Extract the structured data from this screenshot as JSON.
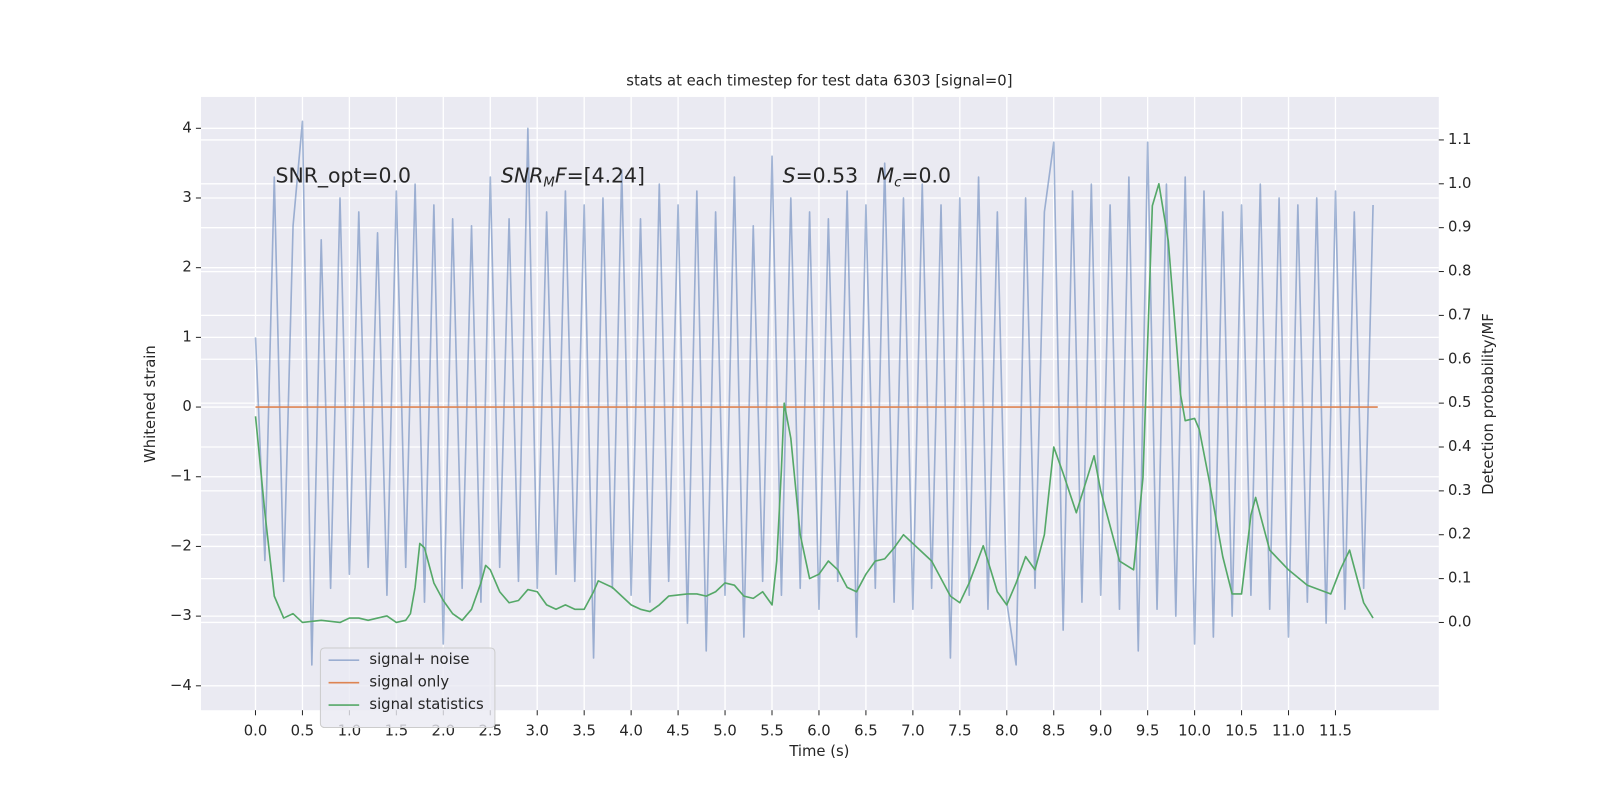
{
  "chart_data": {
    "type": "line",
    "title": "stats at each timestep for test data 6303 [signal=0]",
    "x_label": "Time (s)",
    "y_label": "Whitened strain",
    "y2_label": "Detection probability/MF",
    "xlim": [
      -0.58,
      12.6
    ],
    "ylim": [
      -4.35,
      4.45
    ],
    "y2lim": [
      -0.2,
      1.198
    ],
    "xticks": [
      {
        "value": 0,
        "label": "0.0"
      },
      0.5,
      {
        "value": 1,
        "label": "1.0"
      },
      1.5,
      {
        "value": 2,
        "label": "2.0"
      },
      2.5,
      {
        "value": 3,
        "label": "3.0"
      },
      3.5,
      {
        "value": 4,
        "label": "4.0"
      },
      4.5,
      {
        "value": 5,
        "label": "5.0"
      },
      5.5,
      {
        "value": 6,
        "label": "6.0"
      },
      6.5,
      {
        "value": 7,
        "label": "7.0"
      },
      7.5,
      {
        "value": 8,
        "label": "8.0"
      },
      8.5,
      {
        "value": 9,
        "label": "9.0"
      },
      9.5,
      {
        "value": 10,
        "label": "10.0"
      },
      10.5,
      {
        "value": 11,
        "label": "11.0"
      },
      11.5
    ],
    "yticks": [
      {
        "value": -4,
        "label": "−4"
      },
      {
        "value": -3,
        "label": "−3"
      },
      {
        "value": -2,
        "label": "−2"
      },
      {
        "value": -1,
        "label": "−1"
      },
      0,
      1,
      2,
      3,
      4
    ],
    "y2ticks": [
      {
        "value": 0,
        "label": "0.0"
      },
      0.1,
      0.2,
      0.3,
      0.4,
      0.5,
      0.6,
      0.7,
      0.8,
      0.9,
      {
        "value": 1,
        "label": "1.0"
      },
      1.1
    ],
    "grid": true,
    "legend": "lower left",
    "annotations": [
      {
        "segments": [
          {
            "text": "SNR_opt=0.0"
          }
        ]
      },
      {
        "segments": [
          {
            "text": "SNR",
            "italic": true
          },
          {
            "text": "M",
            "italic": true,
            "sub": true
          },
          {
            "text": "F",
            "italic": true
          },
          {
            "text": "=[4.24]"
          }
        ]
      },
      {
        "segments": [
          {
            "text": "S",
            "italic": true
          },
          {
            "text": "=0.53"
          }
        ]
      },
      {
        "segments": [
          {
            "text": "M",
            "italic": true
          },
          {
            "text": "c",
            "italic": true,
            "sub": true
          },
          {
            "text": "=0.0"
          }
        ]
      }
    ],
    "series": [
      {
        "name": "signal+ noise",
        "color": "#4c72b0",
        "opacity": 0.5,
        "x": [
          0,
          0.1,
          0.2,
          0.3,
          0.4,
          0.5,
          0.6,
          0.7,
          0.8,
          0.9,
          1,
          1.1,
          1.2,
          1.3,
          1.4,
          1.5,
          1.6,
          1.7,
          1.8,
          1.9,
          2,
          2.1,
          2.2,
          2.3,
          2.4,
          2.5,
          2.6,
          2.7,
          2.8,
          2.9,
          3,
          3.1,
          3.2,
          3.3,
          3.4,
          3.5,
          3.6,
          3.7,
          3.8,
          3.9,
          4,
          4.1,
          4.2,
          4.3,
          4.4,
          4.5,
          4.6,
          4.7,
          4.8,
          4.9,
          5,
          5.1,
          5.2,
          5.3,
          5.4,
          5.5,
          5.6,
          5.7,
          5.8,
          5.9,
          6,
          6.1,
          6.2,
          6.3,
          6.4,
          6.5,
          6.6,
          6.7,
          6.8,
          6.9,
          7,
          7.1,
          7.2,
          7.3,
          7.4,
          7.5,
          7.6,
          7.7,
          7.8,
          7.9,
          8,
          8.1,
          8.2,
          8.3,
          8.4,
          8.5,
          8.6,
          8.7,
          8.8,
          8.9,
          9,
          9.1,
          9.2,
          9.3,
          9.4,
          9.5,
          9.6,
          9.7,
          9.8,
          9.9,
          10,
          10.1,
          10.2,
          10.3,
          10.4,
          10.5,
          10.6,
          10.7,
          10.8,
          10.9,
          11,
          11.1,
          11.2,
          11.3,
          11.4,
          11.5,
          11.6,
          11.7,
          11.8,
          11.9
        ],
        "values": [
          1.0,
          -2.2,
          3.3,
          -2.5,
          2.6,
          4.1,
          -3.7,
          2.4,
          -2.6,
          3.0,
          -2.4,
          2.8,
          -2.3,
          2.5,
          -2.7,
          3.1,
          -2.3,
          3.2,
          -2.8,
          2.9,
          -3.4,
          2.7,
          -2.6,
          2.6,
          -2.8,
          3.3,
          -2.3,
          2.7,
          -2.5,
          4.0,
          -2.6,
          2.8,
          -2.4,
          3.1,
          -2.5,
          2.9,
          -3.6,
          3.0,
          -2.6,
          3.4,
          -2.7,
          2.7,
          -2.8,
          3.2,
          -2.5,
          2.9,
          -3.1,
          3.1,
          -3.5,
          2.8,
          -2.7,
          3.3,
          -3.3,
          2.6,
          -2.5,
          3.6,
          -2.7,
          3.0,
          -2.6,
          2.8,
          -2.9,
          2.7,
          -2.5,
          3.1,
          -3.3,
          2.9,
          -2.6,
          3.5,
          -2.8,
          3.0,
          -2.9,
          3.2,
          -2.6,
          2.9,
          -3.6,
          3.0,
          -2.7,
          3.3,
          -2.9,
          2.8,
          -2.8,
          -3.7,
          3.0,
          -2.6,
          2.8,
          3.8,
          -3.2,
          3.1,
          -2.8,
          3.2,
          -2.7,
          2.9,
          -2.9,
          3.3,
          -3.5,
          3.8,
          -2.9,
          3.2,
          -3.0,
          3.3,
          -3.4,
          3.1,
          -3.3,
          2.8,
          -3.0,
          2.9,
          -2.7,
          3.2,
          -2.9,
          3.0,
          -3.3,
          2.9,
          -2.8,
          3.0,
          -3.1,
          3.1,
          -2.9,
          2.8,
          -2.6,
          2.9
        ]
      },
      {
        "name": "signal only",
        "color": "#dd8452",
        "x": [
          0,
          11.95
        ],
        "values": [
          0,
          0
        ]
      },
      {
        "name": "signal statistics",
        "color": "#55a868",
        "axis": "y2",
        "x": [
          0,
          0.1,
          0.2,
          0.3,
          0.4,
          0.5,
          0.7,
          0.9,
          1,
          1.1,
          1.2,
          1.3,
          1.4,
          1.5,
          1.6,
          1.65,
          1.7,
          1.75,
          1.8,
          1.9,
          2,
          2.1,
          2.2,
          2.3,
          2.4,
          2.45,
          2.5,
          2.6,
          2.7,
          2.8,
          2.9,
          3,
          3.1,
          3.2,
          3.3,
          3.4,
          3.5,
          3.6,
          3.65,
          3.8,
          3.9,
          4,
          4.1,
          4.2,
          4.3,
          4.4,
          4.6,
          4.7,
          4.8,
          4.9,
          5,
          5.1,
          5.2,
          5.3,
          5.4,
          5.5,
          5.55,
          5.6,
          5.63,
          5.7,
          5.8,
          5.9,
          6,
          6.1,
          6.2,
          6.3,
          6.4,
          6.5,
          6.6,
          6.7,
          6.8,
          6.9,
          7,
          7.2,
          7.4,
          7.5,
          7.6,
          7.75,
          7.9,
          8,
          8.1,
          8.2,
          8.3,
          8.4,
          8.5,
          8.6,
          8.74,
          8.93,
          9,
          9.2,
          9.35,
          9.45,
          9.55,
          9.62,
          9.72,
          9.85,
          9.9,
          10,
          10.05,
          10.15,
          10.3,
          10.4,
          10.5,
          10.6,
          10.65,
          10.8,
          11,
          11.2,
          11.45,
          11.55,
          11.65,
          11.8,
          11.9
        ],
        "values": [
          0.47,
          0.25,
          0.06,
          0.01,
          0.02,
          0.0,
          0.005,
          0.0,
          0.01,
          0.01,
          0.005,
          0.01,
          0.015,
          0.0,
          0.005,
          0.02,
          0.08,
          0.18,
          0.17,
          0.09,
          0.05,
          0.02,
          0.005,
          0.03,
          0.09,
          0.13,
          0.12,
          0.07,
          0.045,
          0.05,
          0.075,
          0.07,
          0.04,
          0.03,
          0.04,
          0.03,
          0.03,
          0.07,
          0.095,
          0.08,
          0.06,
          0.04,
          0.03,
          0.025,
          0.04,
          0.06,
          0.065,
          0.065,
          0.06,
          0.07,
          0.09,
          0.085,
          0.06,
          0.055,
          0.07,
          0.04,
          0.14,
          0.35,
          0.5,
          0.42,
          0.2,
          0.1,
          0.11,
          0.14,
          0.12,
          0.08,
          0.07,
          0.11,
          0.14,
          0.145,
          0.17,
          0.2,
          0.18,
          0.14,
          0.06,
          0.045,
          0.09,
          0.175,
          0.07,
          0.04,
          0.09,
          0.15,
          0.12,
          0.2,
          0.4,
          0.34,
          0.25,
          0.38,
          0.3,
          0.14,
          0.12,
          0.33,
          0.95,
          1.0,
          0.87,
          0.52,
          0.46,
          0.465,
          0.44,
          0.33,
          0.15,
          0.065,
          0.065,
          0.245,
          0.285,
          0.165,
          0.12,
          0.085,
          0.065,
          0.12,
          0.165,
          0.045,
          0.01
        ]
      }
    ]
  }
}
